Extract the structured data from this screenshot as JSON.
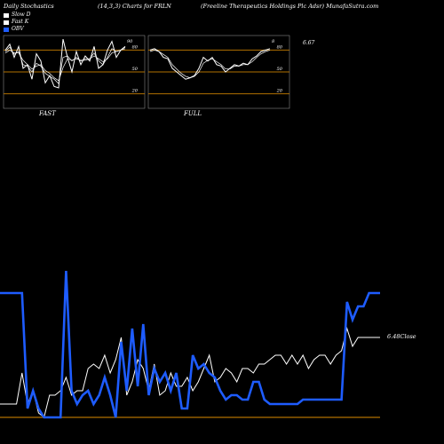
{
  "header": {
    "left": "Daily Stochastics",
    "center": "(14,3,3) Charts for FRLN",
    "right": "(Freeline   Therapeutics Holdings Plc Adsr) MunafaSutra.com"
  },
  "legend": [
    {
      "label": "Slow  D",
      "color": "#ffffff"
    },
    {
      "label": "Fast  K",
      "color": "#ffffff"
    },
    {
      "label": "OBV",
      "color": "#1e5cff"
    }
  ],
  "captions": {
    "fast": "FAST",
    "full": "FULL"
  },
  "colors": {
    "panel_bg": "#000000",
    "level_line": "#b07000",
    "obv": "#1e5cff",
    "price": "#ffffff"
  },
  "chart_data": [
    {
      "type": "line",
      "panel": "fast-stochastic",
      "ylim": [
        0,
        100
      ],
      "levels": [
        20,
        50,
        80
      ],
      "level_labels": [
        "20",
        "50",
        "80"
      ],
      "end_label": "90",
      "series": [
        {
          "values": [
            80,
            88,
            70,
            85,
            55,
            60,
            40,
            75,
            65,
            35,
            45,
            30,
            28,
            95,
            70,
            50,
            78,
            60,
            72,
            65,
            85,
            55,
            60,
            80,
            92,
            70,
            80,
            85
          ]
        },
        {
          "values": [
            78,
            84,
            74,
            78,
            60,
            58,
            50,
            62,
            58,
            48,
            44,
            40,
            34,
            70,
            72,
            65,
            70,
            65,
            68,
            68,
            76,
            65,
            60,
            70,
            82,
            78,
            80,
            84
          ]
        },
        {
          "values": [
            76,
            80,
            76,
            76,
            66,
            60,
            54,
            58,
            60,
            52,
            48,
            42,
            38,
            56,
            68,
            66,
            68,
            66,
            66,
            68,
            72,
            68,
            64,
            68,
            76,
            78,
            80,
            82
          ]
        }
      ]
    },
    {
      "type": "line",
      "panel": "full-stochastic",
      "ylim": [
        0,
        100
      ],
      "levels": [
        20,
        50,
        80
      ],
      "level_labels": [
        "20",
        "50",
        "80"
      ],
      "end_label": "8",
      "series": [
        {
          "values": [
            80,
            82,
            78,
            70,
            68,
            55,
            50,
            45,
            40,
            42,
            45,
            55,
            70,
            65,
            70,
            60,
            58,
            50,
            55,
            60,
            58,
            62,
            60,
            68,
            72,
            78,
            80,
            82
          ]
        },
        {
          "values": [
            78,
            80,
            78,
            74,
            70,
            60,
            54,
            48,
            44,
            42,
            44,
            50,
            62,
            66,
            68,
            64,
            60,
            54,
            54,
            58,
            58,
            60,
            60,
            64,
            70,
            75,
            78,
            80
          ]
        }
      ]
    },
    {
      "type": "line",
      "panel": "price-obv",
      "price_label": "6.67",
      "close_label": "6.48Close",
      "series": [
        {
          "name": "OBV",
          "values": [
            330,
            330,
            330,
            330,
            330,
            460,
            440,
            460,
            470,
            470,
            470,
            470,
            305,
            440,
            455,
            445,
            440,
            455,
            445,
            425,
            445,
            470,
            385,
            440,
            370,
            435,
            365,
            445,
            415,
            430,
            420,
            440,
            420,
            460,
            460,
            400,
            415,
            410,
            420,
            425,
            440,
            450,
            445,
            445,
            450,
            450,
            430,
            430,
            450,
            455,
            455,
            455,
            455,
            455,
            455,
            450,
            450,
            450,
            450,
            450,
            450,
            450,
            450,
            340,
            360,
            345,
            345,
            330,
            330,
            330
          ]
        },
        {
          "name": "Price",
          "values": [
            455,
            455,
            455,
            455,
            420,
            455,
            440,
            465,
            470,
            445,
            445,
            440,
            425,
            445,
            440,
            440,
            415,
            410,
            415,
            400,
            420,
            405,
            380,
            445,
            430,
            405,
            415,
            440,
            410,
            445,
            440,
            420,
            435,
            435,
            425,
            440,
            430,
            415,
            400,
            430,
            425,
            415,
            420,
            430,
            415,
            415,
            420,
            410,
            410,
            405,
            400,
            400,
            410,
            400,
            410,
            400,
            415,
            405,
            400,
            400,
            410,
            400,
            395,
            370,
            390,
            380,
            380,
            380,
            380,
            380
          ]
        }
      ]
    }
  ]
}
